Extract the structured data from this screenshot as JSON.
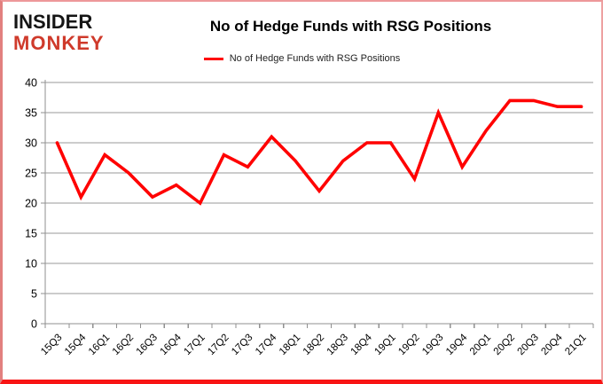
{
  "brand": {
    "line1": "INSIDER",
    "line2": "MONKEY"
  },
  "header": {
    "title": "No of Hedge Funds with RSG Positions"
  },
  "legend": {
    "label": "No of Hedge Funds with RSG Positions"
  },
  "chart_data": {
    "type": "line",
    "title": "No of Hedge Funds with RSG Positions",
    "series_name": "No of Hedge Funds with RSG Positions",
    "categories": [
      "15Q3",
      "15Q4",
      "16Q1",
      "16Q2",
      "16Q3",
      "16Q4",
      "17Q1",
      "17Q2",
      "17Q3",
      "17Q4",
      "18Q1",
      "18Q2",
      "18Q3",
      "18Q4",
      "19Q1",
      "19Q2",
      "19Q3",
      "19Q4",
      "20Q1",
      "20Q2",
      "20Q3",
      "20Q4",
      "21Q1"
    ],
    "values": [
      30,
      21,
      28,
      25,
      21,
      23,
      20,
      28,
      26,
      31,
      27,
      22,
      27,
      30,
      30,
      24,
      35,
      26,
      32,
      37,
      37,
      36,
      36
    ],
    "xlabel": "",
    "ylabel": "",
    "ylim": [
      0,
      40
    ],
    "yticks": [
      0,
      5,
      10,
      15,
      20,
      25,
      30,
      35,
      40
    ],
    "grid": true,
    "legend_position": "top",
    "line_color": "#ff0000",
    "axis_color": "#8f8f8f",
    "grid_color": "#999999",
    "label_color": "#000000"
  },
  "colors": {
    "accent_red": "#ff0000",
    "logo_red": "#cf3a2b",
    "border_pink": "#ed989a",
    "border_bottom_red": "#f81414"
  }
}
